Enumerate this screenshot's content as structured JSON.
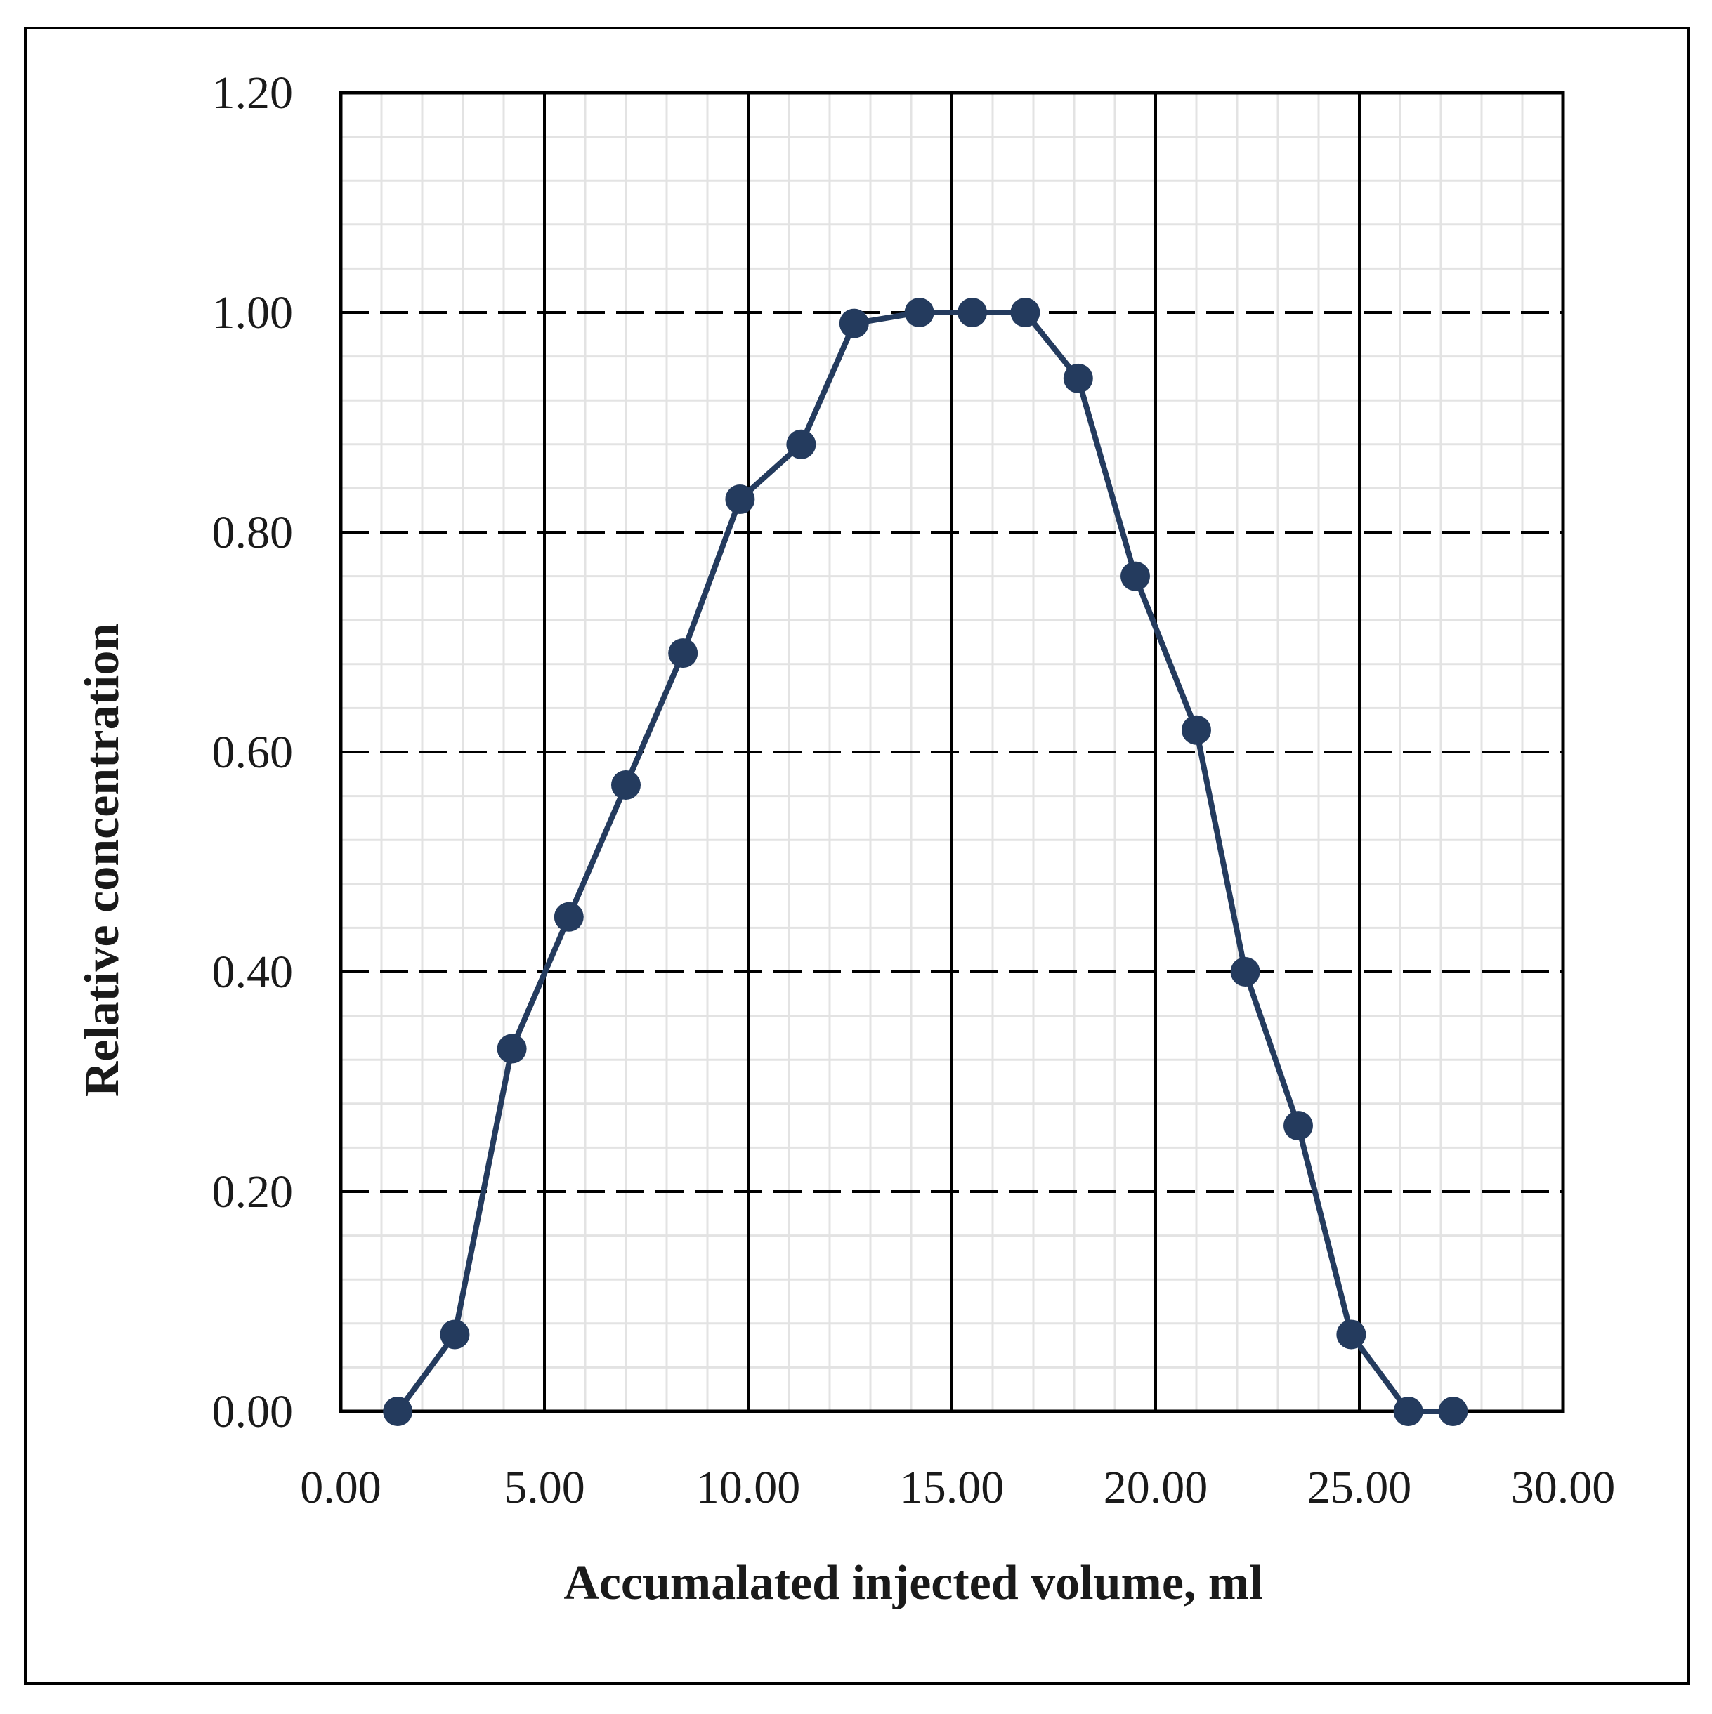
{
  "chart_data": {
    "type": "line",
    "title": "",
    "xlabel": "Accumalated injected volume, ml",
    "ylabel": "Relative concentration",
    "xlim": [
      0,
      30
    ],
    "ylim": [
      0,
      1.2
    ],
    "x_ticks": [
      "0.00",
      "5.00",
      "10.00",
      "15.00",
      "20.00",
      "25.00",
      "30.00"
    ],
    "y_ticks": [
      "0.00",
      "0.20",
      "0.40",
      "0.60",
      "0.80",
      "1.00",
      "1.20"
    ],
    "grid": true,
    "legend": "none",
    "series_color": "#243b5e",
    "series": [
      {
        "name": "Relative concentration",
        "x": [
          1.4,
          2.8,
          4.2,
          5.6,
          7.0,
          8.4,
          9.8,
          11.3,
          12.6,
          14.2,
          15.5,
          16.8,
          18.1,
          19.5,
          21.0,
          22.2,
          23.5,
          24.8,
          26.2,
          27.3
        ],
        "y": [
          0.0,
          0.07,
          0.33,
          0.45,
          0.57,
          0.69,
          0.83,
          0.88,
          0.99,
          1.0,
          1.0,
          1.0,
          0.94,
          0.76,
          0.62,
          0.4,
          0.26,
          0.07,
          0.0,
          0.0
        ]
      }
    ]
  }
}
